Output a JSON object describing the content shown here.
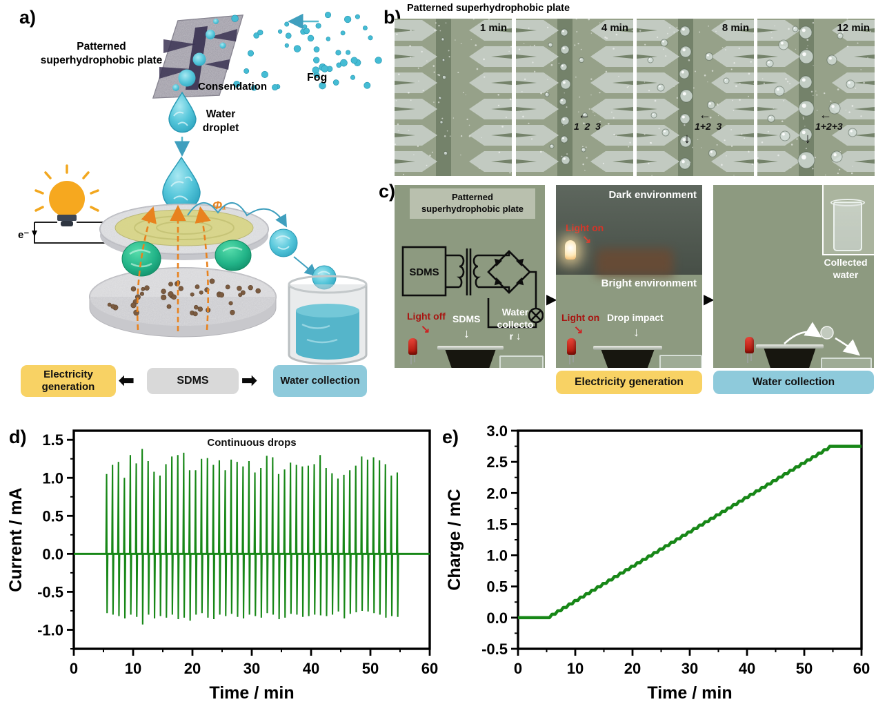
{
  "icons": {
    "block_arrow_left": "⬅",
    "block_arrow_right": "➡",
    "thin_arrow_left": "←",
    "down_arrow": "↓",
    "right_triangle_arrow": "▶",
    "diag_arrow": "↘"
  },
  "colors": {
    "chart_green": "#178717",
    "box_yellow": "#f8d264",
    "box_gray": "#d9d9d9",
    "box_blue": "#8ecadb",
    "cyan_droplet": "#4ec7de",
    "orange_field": "#e8821e",
    "photo_sage": "#8d9a80"
  },
  "panel_a": {
    "label": "a)",
    "plate_title_line1": "Patterned",
    "plate_title_line2": "superhydrophobic plate",
    "condensation": "Consendation",
    "fog": "Fog",
    "droplet_line1": "Water",
    "droplet_line2": "droplet",
    "electron": "e⁻",
    "phi": "Φ₁",
    "box_electricity": "Electricity generation",
    "box_sdms": "SDMS",
    "box_water": "Water collection"
  },
  "panel_b": {
    "label": "b)",
    "title": "Patterned superhydrophobic plate",
    "photos": [
      {
        "time": "1 min",
        "annotation": ""
      },
      {
        "time": "4 min",
        "annotation": "1  2  3"
      },
      {
        "time": "8 min",
        "annotation": "1+2  3"
      },
      {
        "time": "12 min",
        "annotation": "1+2+3"
      }
    ]
  },
  "panel_c": {
    "label": "c)",
    "photo1": {
      "plate_line1": "Patterned",
      "plate_line2": "superhydrophobic plate",
      "circuit_box": "SDMS",
      "light_label": "Light off",
      "device_label": "SDMS",
      "collector_line1": "Water",
      "collector_line2": "collecto",
      "collector_line3": "r"
    },
    "photo2": {
      "dark": "Dark environment",
      "light_on_top": "Light on",
      "bright": "Bright environment",
      "light_on": "Light on",
      "drop": "Drop impact",
      "box": "Electricity generation"
    },
    "photo3": {
      "collected_line1": "Collected",
      "collected_line2": "water",
      "box": "Water collection"
    }
  },
  "chart_data": [
    {
      "type": "line",
      "panel_label": "d)",
      "title": "Continuous drops",
      "xlabel": "Time / min",
      "ylabel": "Current / mA",
      "xlim": [
        0,
        60
      ],
      "ylim": [
        -1.25,
        1.62
      ],
      "xticks": [
        0,
        10,
        20,
        30,
        40,
        50,
        60
      ],
      "xtick_labels": [
        "0",
        "10",
        "20",
        "30",
        "40",
        "50",
        "60"
      ],
      "x_minor": [
        5,
        15,
        25,
        35,
        45,
        55
      ],
      "yticks": [
        -1.0,
        -0.5,
        0.0,
        0.5,
        1.0,
        1.5
      ],
      "ytick_labels": [
        "-1.0",
        "-0.5",
        "0.0",
        "0.5",
        "1.0",
        "1.5"
      ],
      "y_minor": [
        -1.25,
        -0.75,
        -0.25,
        0.25,
        0.75,
        1.25
      ],
      "line_color": "#178717",
      "baseline": 0.0,
      "active_start_min": 5.5,
      "active_end_min": 55,
      "spikes": [
        {
          "t": 5.6,
          "pos": 1.05,
          "neg": -0.78
        },
        {
          "t": 6.6,
          "pos": 1.17,
          "neg": -0.8
        },
        {
          "t": 7.6,
          "pos": 1.21,
          "neg": -0.82
        },
        {
          "t": 8.6,
          "pos": 1.0,
          "neg": -0.85
        },
        {
          "t": 9.6,
          "pos": 1.3,
          "neg": -0.8
        },
        {
          "t": 10.6,
          "pos": 1.19,
          "neg": -0.83
        },
        {
          "t": 11.6,
          "pos": 1.38,
          "neg": -0.93
        },
        {
          "t": 12.6,
          "pos": 1.22,
          "neg": -0.8
        },
        {
          "t": 13.6,
          "pos": 1.08,
          "neg": -0.85
        },
        {
          "t": 14.6,
          "pos": 1.03,
          "neg": -0.82
        },
        {
          "t": 15.6,
          "pos": 1.18,
          "neg": -0.84
        },
        {
          "t": 16.6,
          "pos": 1.28,
          "neg": -0.8
        },
        {
          "t": 17.6,
          "pos": 1.3,
          "neg": -0.86
        },
        {
          "t": 18.6,
          "pos": 1.33,
          "neg": -0.84
        },
        {
          "t": 19.6,
          "pos": 1.1,
          "neg": -0.88
        },
        {
          "t": 20.6,
          "pos": 1.1,
          "neg": -0.8
        },
        {
          "t": 21.6,
          "pos": 1.25,
          "neg": -0.78
        },
        {
          "t": 22.6,
          "pos": 1.26,
          "neg": -0.84
        },
        {
          "t": 23.6,
          "pos": 1.17,
          "neg": -0.86
        },
        {
          "t": 24.6,
          "pos": 1.23,
          "neg": -0.8
        },
        {
          "t": 25.6,
          "pos": 1.1,
          "neg": -0.82
        },
        {
          "t": 26.6,
          "pos": 1.24,
          "neg": -0.79
        },
        {
          "t": 27.6,
          "pos": 1.21,
          "neg": -0.83
        },
        {
          "t": 28.6,
          "pos": 1.15,
          "neg": -0.85
        },
        {
          "t": 29.6,
          "pos": 1.22,
          "neg": -0.8
        },
        {
          "t": 30.6,
          "pos": 1.07,
          "neg": -0.82
        },
        {
          "t": 31.6,
          "pos": 1.13,
          "neg": -0.84
        },
        {
          "t": 32.6,
          "pos": 1.29,
          "neg": -0.78
        },
        {
          "t": 33.6,
          "pos": 1.27,
          "neg": -0.8
        },
        {
          "t": 34.6,
          "pos": 1.05,
          "neg": -0.86
        },
        {
          "t": 35.6,
          "pos": 1.11,
          "neg": -0.84
        },
        {
          "t": 36.6,
          "pos": 1.2,
          "neg": -0.79
        },
        {
          "t": 37.6,
          "pos": 1.17,
          "neg": -0.8
        },
        {
          "t": 38.6,
          "pos": 1.15,
          "neg": -0.83
        },
        {
          "t": 39.6,
          "pos": 1.16,
          "neg": -0.82
        },
        {
          "t": 40.6,
          "pos": 1.18,
          "neg": -0.8
        },
        {
          "t": 41.6,
          "pos": 1.3,
          "neg": -0.81
        },
        {
          "t": 42.6,
          "pos": 1.13,
          "neg": -0.82
        },
        {
          "t": 43.6,
          "pos": 1.06,
          "neg": -0.8
        },
        {
          "t": 44.6,
          "pos": 0.99,
          "neg": -0.76
        },
        {
          "t": 45.6,
          "pos": 1.04,
          "neg": -0.85
        },
        {
          "t": 46.6,
          "pos": 1.1,
          "neg": -0.79
        },
        {
          "t": 47.6,
          "pos": 1.16,
          "neg": -0.77
        },
        {
          "t": 48.6,
          "pos": 1.28,
          "neg": -0.75
        },
        {
          "t": 49.6,
          "pos": 1.24,
          "neg": -0.76
        },
        {
          "t": 50.6,
          "pos": 1.27,
          "neg": -0.78
        },
        {
          "t": 51.6,
          "pos": 1.23,
          "neg": -0.8
        },
        {
          "t": 52.6,
          "pos": 1.18,
          "neg": -0.84
        },
        {
          "t": 53.6,
          "pos": 1.03,
          "neg": -0.82
        },
        {
          "t": 54.6,
          "pos": 1.07,
          "neg": -0.83
        }
      ]
    },
    {
      "type": "line",
      "panel_label": "e)",
      "title": "",
      "xlabel": "Time / min",
      "ylabel": "Charge / mC",
      "xlim": [
        0,
        60
      ],
      "ylim": [
        -0.5,
        3.0
      ],
      "xticks": [
        0,
        10,
        20,
        30,
        40,
        50,
        60
      ],
      "xtick_labels": [
        "0",
        "10",
        "20",
        "30",
        "40",
        "50",
        "60"
      ],
      "x_minor": [
        5,
        15,
        25,
        35,
        45,
        55
      ],
      "yticks": [
        -0.5,
        0.0,
        0.5,
        1.0,
        1.5,
        2.0,
        2.5,
        3.0
      ],
      "ytick_labels": [
        "-0.5",
        "0.0",
        "0.5",
        "1.0",
        "1.5",
        "2.0",
        "2.5",
        "3.0"
      ],
      "y_minor": [
        -0.25,
        0.25,
        0.75,
        1.25,
        1.75,
        2.25,
        2.75
      ],
      "line_color": "#178717",
      "staircase": {
        "t_start": 5.5,
        "t_end": 55,
        "q_start": 0.0,
        "q_end": 2.75,
        "steps": 50
      },
      "key_points": [
        [
          0,
          0.0
        ],
        [
          5.5,
          0.0
        ],
        [
          55,
          2.75
        ],
        [
          60,
          2.75
        ]
      ]
    }
  ]
}
